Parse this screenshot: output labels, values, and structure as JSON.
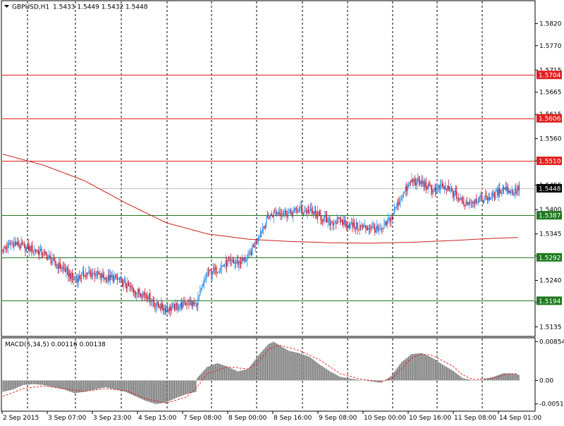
{
  "header": {
    "symbol_label": "GBPUSD,H1",
    "ohlc": "1.5433 1.5449 1.5432 1.5448"
  },
  "colors": {
    "bull": "#2a8be6",
    "bear": "#c8102e",
    "ma": "#c81e1e",
    "resistance": "#e02020",
    "support": "#1e7a1e",
    "current": "#c0c0c0",
    "macd_hist": "#808080",
    "signal": "#e02020",
    "grid": "#000000"
  },
  "chart_data": [
    {
      "type": "candlestick",
      "name_label": "GBPUSD,H1",
      "ylim": [
        1.5115,
        1.587
      ],
      "y_ticks": [
        "1.5820",
        "1.5770",
        "1.5715",
        "1.5665",
        "1.5615",
        "1.5560",
        "1.5510",
        "1.5455",
        "1.5400",
        "1.5345",
        "1.5295",
        "1.5240",
        "1.5190",
        "1.5135"
      ],
      "x_labels": [
        "2 Sep 2015",
        "3 Sep 07:00",
        "3 Sep 23:00",
        "4 Sep 15:00",
        "7 Sep 08:00",
        "8 Sep 00:00",
        "8 Sep 16:00",
        "9 Sep 08:00",
        "10 Sep 00:00",
        "10 Sep 16:00",
        "11 Sep 08:00",
        "14 Sep 01:00"
      ],
      "levels": [
        {
          "value": 1.5704,
          "label": "1.5704",
          "kind": "resistance"
        },
        {
          "value": 1.5606,
          "label": "1.5606",
          "kind": "resistance"
        },
        {
          "value": 1.551,
          "label": "1.5510",
          "kind": "resistance"
        },
        {
          "value": 1.5387,
          "label": "1.5387",
          "kind": "support"
        },
        {
          "value": 1.5292,
          "label": "1.5292",
          "kind": "support"
        },
        {
          "value": 1.5194,
          "label": "1.5194",
          "kind": "support"
        }
      ],
      "current_price": {
        "value": 1.5448,
        "label": "1.5448"
      },
      "close_path": [
        [
          0,
          1.531
        ],
        [
          10,
          1.5325
        ],
        [
          20,
          1.5315
        ],
        [
          30,
          1.531
        ],
        [
          40,
          1.53
        ],
        [
          50,
          1.528
        ],
        [
          60,
          1.5265
        ],
        [
          70,
          1.524
        ],
        [
          80,
          1.5255
        ],
        [
          90,
          1.5255
        ],
        [
          100,
          1.5245
        ],
        [
          110,
          1.5245
        ],
        [
          120,
          1.523
        ],
        [
          130,
          1.5215
        ],
        [
          140,
          1.521
        ],
        [
          150,
          1.5185
        ],
        [
          160,
          1.5175
        ],
        [
          170,
          1.518
        ],
        [
          180,
          1.519
        ],
        [
          189,
          1.5185
        ],
        [
          200,
          1.5255
        ],
        [
          210,
          1.5265
        ],
        [
          220,
          1.528
        ],
        [
          230,
          1.528
        ],
        [
          240,
          1.529
        ],
        [
          250,
          1.534
        ],
        [
          260,
          1.5385
        ],
        [
          270,
          1.5395
        ],
        [
          280,
          1.539
        ],
        [
          290,
          1.54
        ],
        [
          300,
          1.5395
        ],
        [
          310,
          1.5385
        ],
        [
          320,
          1.537
        ],
        [
          330,
          1.5375
        ],
        [
          340,
          1.5365
        ],
        [
          350,
          1.536
        ],
        [
          360,
          1.536
        ],
        [
          370,
          1.535
        ],
        [
          380,
          1.5385
        ],
        [
          390,
          1.543
        ],
        [
          400,
          1.5465
        ],
        [
          410,
          1.546
        ],
        [
          420,
          1.5445
        ],
        [
          430,
          1.545
        ],
        [
          440,
          1.544
        ],
        [
          450,
          1.5415
        ],
        [
          460,
          1.542
        ],
        [
          470,
          1.5425
        ],
        [
          480,
          1.543
        ],
        [
          490,
          1.545
        ],
        [
          500,
          1.5438
        ],
        [
          505,
          1.5448
        ]
      ],
      "moving_average": [
        [
          0,
          1.5525
        ],
        [
          40,
          1.55
        ],
        [
          80,
          1.5465
        ],
        [
          120,
          1.5415
        ],
        [
          160,
          1.537
        ],
        [
          200,
          1.5345
        ],
        [
          240,
          1.5333
        ],
        [
          280,
          1.5328
        ],
        [
          320,
          1.5325
        ],
        [
          360,
          1.5324
        ],
        [
          400,
          1.5326
        ],
        [
          440,
          1.533
        ],
        [
          480,
          1.5335
        ],
        [
          505,
          1.5337
        ]
      ]
    },
    {
      "type": "histogram",
      "title": "MACD(5,34,5) 0.00116 0.00138",
      "ylim": [
        -0.0066,
        0.0092
      ],
      "y_ticks": [
        "0.00854",
        "0.00",
        "-0.00516"
      ],
      "hist_path": [
        [
          0,
          -0.0025
        ],
        [
          10,
          -0.002
        ],
        [
          20,
          -0.001
        ],
        [
          30,
          -0.0008
        ],
        [
          40,
          -0.001
        ],
        [
          50,
          -0.0015
        ],
        [
          60,
          -0.002
        ],
        [
          70,
          -0.0028
        ],
        [
          80,
          -0.0025
        ],
        [
          90,
          -0.002
        ],
        [
          100,
          -0.0015
        ],
        [
          110,
          -0.002
        ],
        [
          120,
          -0.0025
        ],
        [
          130,
          -0.0035
        ],
        [
          140,
          -0.0045
        ],
        [
          150,
          -0.0052
        ],
        [
          160,
          -0.0048
        ],
        [
          170,
          -0.0038
        ],
        [
          180,
          -0.003
        ],
        [
          189,
          -0.0025
        ],
        [
          190,
          0.0005
        ],
        [
          200,
          0.003
        ],
        [
          210,
          0.0038
        ],
        [
          220,
          0.003
        ],
        [
          230,
          0.002
        ],
        [
          240,
          0.0025
        ],
        [
          250,
          0.0055
        ],
        [
          260,
          0.008
        ],
        [
          265,
          0.0085
        ],
        [
          270,
          0.0078
        ],
        [
          280,
          0.0065
        ],
        [
          290,
          0.006
        ],
        [
          300,
          0.0052
        ],
        [
          310,
          0.0035
        ],
        [
          320,
          0.002
        ],
        [
          330,
          0.0008
        ],
        [
          340,
          0.0004
        ],
        [
          350,
          0.0001
        ],
        [
          360,
          -0.0002
        ],
        [
          370,
          -0.0005
        ],
        [
          380,
          0.001
        ],
        [
          390,
          0.004
        ],
        [
          400,
          0.0058
        ],
        [
          410,
          0.006
        ],
        [
          420,
          0.005
        ],
        [
          430,
          0.0035
        ],
        [
          440,
          0.0022
        ],
        [
          450,
          0.0005
        ],
        [
          460,
          0.0
        ],
        [
          470,
          0.0002
        ],
        [
          480,
          0.0008
        ],
        [
          490,
          0.0016
        ],
        [
          500,
          0.0015
        ],
        [
          505,
          0.0012
        ]
      ],
      "signal_path": [
        [
          0,
          -0.0035
        ],
        [
          20,
          -0.0018
        ],
        [
          40,
          -0.0012
        ],
        [
          60,
          -0.0018
        ],
        [
          80,
          -0.0024
        ],
        [
          100,
          -0.0018
        ],
        [
          120,
          -0.0022
        ],
        [
          140,
          -0.004
        ],
        [
          160,
          -0.005
        ],
        [
          180,
          -0.0036
        ],
        [
          190,
          -0.0015
        ],
        [
          200,
          0.0015
        ],
        [
          220,
          0.003
        ],
        [
          240,
          0.0025
        ],
        [
          250,
          0.004
        ],
        [
          260,
          0.0068
        ],
        [
          270,
          0.0078
        ],
        [
          290,
          0.0066
        ],
        [
          310,
          0.0045
        ],
        [
          330,
          0.0015
        ],
        [
          350,
          0.0003
        ],
        [
          370,
          -0.0003
        ],
        [
          380,
          0.0003
        ],
        [
          390,
          0.0025
        ],
        [
          400,
          0.005
        ],
        [
          410,
          0.0058
        ],
        [
          420,
          0.0055
        ],
        [
          440,
          0.0032
        ],
        [
          450,
          0.0012
        ],
        [
          460,
          0.0002
        ],
        [
          480,
          0.0005
        ],
        [
          490,
          0.0012
        ],
        [
          500,
          0.0015
        ],
        [
          505,
          0.0014
        ]
      ]
    }
  ]
}
